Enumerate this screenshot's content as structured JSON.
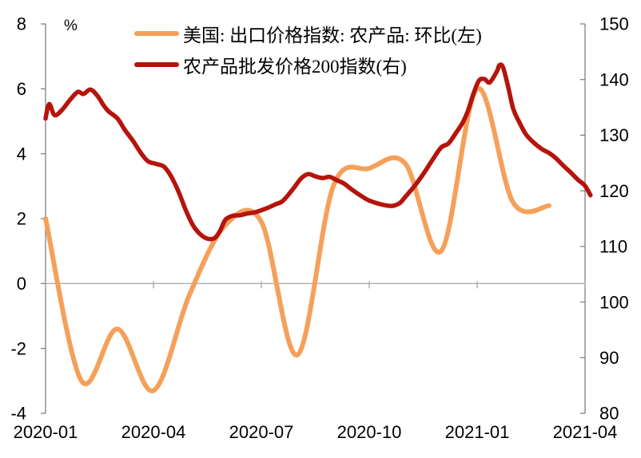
{
  "chart": {
    "unit_label": "%",
    "background": "#FFFFFF",
    "axis_color": "#808080",
    "zero_line_color": "#9E9E9E",
    "label_color": "#000000"
  },
  "legend": {
    "items": [
      {
        "label": "美国: 出口价格指数: 农产品: 环比(左)"
      },
      {
        "label": "农产品批发价格200指数(右)"
      }
    ]
  },
  "chart_data": {
    "type": "line",
    "title": "",
    "x_axis": {
      "labels": [
        "2020-01",
        "2020-04",
        "2020-07",
        "2020-10",
        "2021-01",
        "2021-04"
      ],
      "tick_positions_months": [
        0,
        3,
        6,
        9,
        12,
        15
      ],
      "range_months": [
        0,
        15
      ]
    },
    "left_axis": {
      "unit": "%",
      "ticks": [
        8,
        6,
        4,
        2,
        0,
        -2,
        -4
      ],
      "min": -4,
      "max": 8
    },
    "right_axis": {
      "ticks": [
        150,
        140,
        130,
        120,
        110,
        100,
        90,
        80
      ],
      "min": 80,
      "max": 150
    },
    "series": [
      {
        "name": "美国: 出口价格指数: 农产品: 环比(左)",
        "axis": "left",
        "color": "#F5A05A",
        "stroke_width": 6,
        "months": [
          "2020-01",
          "2020-02",
          "2020-03",
          "2020-04",
          "2020-05",
          "2020-06",
          "2020-07",
          "2020-08",
          "2020-09",
          "2020-10",
          "2020-11",
          "2020-12",
          "2021-01",
          "2021-02",
          "2021-03"
        ],
        "values": [
          2.0,
          -3.0,
          -1.4,
          -3.3,
          -0.35,
          1.8,
          1.9,
          -2.2,
          3.0,
          3.55,
          3.7,
          1.0,
          6.0,
          2.5,
          2.4
        ]
      },
      {
        "name": "农产品批发价格200指数(右)",
        "axis": "right",
        "color": "#B5140C",
        "stroke_width": 5.5,
        "points": [
          [
            0.0,
            133.0
          ],
          [
            0.1,
            135.6
          ],
          [
            0.25,
            133.6
          ],
          [
            0.45,
            134.5
          ],
          [
            0.7,
            136.5
          ],
          [
            0.9,
            137.8
          ],
          [
            1.05,
            137.4
          ],
          [
            1.25,
            138.2
          ],
          [
            1.45,
            137.0
          ],
          [
            1.6,
            135.5
          ],
          [
            1.75,
            134.3
          ],
          [
            2.0,
            133.0
          ],
          [
            2.2,
            131.0
          ],
          [
            2.45,
            128.8
          ],
          [
            2.65,
            126.8
          ],
          [
            2.85,
            125.3
          ],
          [
            3.1,
            124.8
          ],
          [
            3.3,
            124.3
          ],
          [
            3.5,
            122.5
          ],
          [
            3.7,
            119.8
          ],
          [
            3.9,
            116.5
          ],
          [
            4.1,
            113.8
          ],
          [
            4.3,
            112.2
          ],
          [
            4.5,
            111.4
          ],
          [
            4.7,
            111.5
          ],
          [
            4.85,
            112.8
          ],
          [
            5.0,
            114.8
          ],
          [
            5.2,
            115.5
          ],
          [
            5.4,
            115.6
          ],
          [
            5.6,
            115.9
          ],
          [
            5.8,
            116.1
          ],
          [
            6.0,
            116.5
          ],
          [
            6.2,
            117.0
          ],
          [
            6.4,
            117.6
          ],
          [
            6.6,
            118.2
          ],
          [
            6.9,
            120.5
          ],
          [
            7.1,
            122.2
          ],
          [
            7.3,
            123.0
          ],
          [
            7.5,
            122.6
          ],
          [
            7.7,
            122.3
          ],
          [
            7.9,
            122.5
          ],
          [
            8.1,
            121.9
          ],
          [
            8.3,
            121.3
          ],
          [
            8.5,
            120.3
          ],
          [
            8.7,
            119.4
          ],
          [
            8.95,
            118.4
          ],
          [
            9.2,
            117.8
          ],
          [
            9.45,
            117.4
          ],
          [
            9.65,
            117.3
          ],
          [
            9.85,
            117.8
          ],
          [
            10.0,
            118.9
          ],
          [
            10.25,
            120.8
          ],
          [
            10.5,
            123.0
          ],
          [
            10.75,
            125.5
          ],
          [
            11.0,
            127.8
          ],
          [
            11.2,
            128.5
          ],
          [
            11.4,
            130.3
          ],
          [
            11.6,
            132.3
          ],
          [
            11.75,
            134.5
          ],
          [
            11.9,
            137.5
          ],
          [
            12.05,
            139.8
          ],
          [
            12.2,
            140.1
          ],
          [
            12.35,
            139.5
          ],
          [
            12.55,
            141.5
          ],
          [
            12.62,
            142.6
          ],
          [
            12.72,
            142.2
          ],
          [
            12.85,
            139.0
          ],
          [
            13.0,
            134.8
          ],
          [
            13.15,
            132.6
          ],
          [
            13.35,
            130.2
          ],
          [
            13.55,
            128.8
          ],
          [
            13.8,
            127.5
          ],
          [
            14.0,
            126.8
          ],
          [
            14.2,
            125.8
          ],
          [
            14.4,
            124.5
          ],
          [
            14.6,
            123.3
          ],
          [
            14.8,
            122.0
          ],
          [
            15.0,
            120.9
          ],
          [
            15.15,
            119.2
          ]
        ]
      }
    ]
  }
}
